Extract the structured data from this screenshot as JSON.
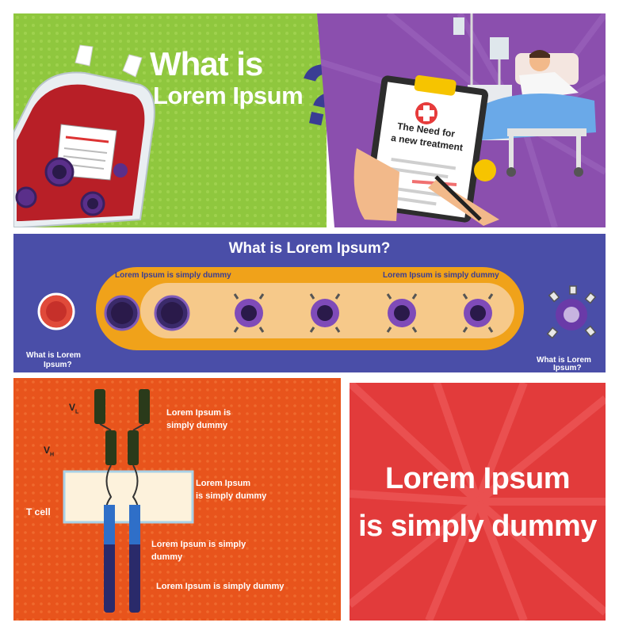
{
  "panel1": {
    "title_line1": "What is",
    "title_line2": "Lorem Ipsum",
    "question_mark": "?",
    "bg_color": "#8fc73e",
    "accent_color": "#3a3d94"
  },
  "panel2": {
    "clipboard_line1": "The Need for",
    "clipboard_line2": "a new treatment",
    "bg_color": "#8b4fae",
    "accent_color": "#e63b3b"
  },
  "panel3": {
    "title": "What is Lorem Ipsum?",
    "label_left": "Lorem Ipsum is simply dummy",
    "label_right": "Lorem Ipsum is simply dummy",
    "caption_left_line1": "What is Lorem",
    "caption_left_line2": "Ipsum?",
    "caption_right_line1": "What is Lorem",
    "caption_right_line2": "Ipsum?",
    "bg_color": "#4a4ea8",
    "band_color": "#f0a21a"
  },
  "panel4": {
    "vl_label": "V",
    "vl_sub": "L",
    "vh_label": "V",
    "vh_sub": "H",
    "tcell_label": "T cell",
    "note1_line1": "Lorem Ipsum is",
    "note1_line2": "simply dummy",
    "note2_line1": "Lorem Ipsum",
    "note2_line2": "is simply dummy",
    "note3_line1": "Lorem Ipsum is simply",
    "note3_line2": "dummy",
    "note4": "Lorem Ipsum is simply dummy",
    "bg_color": "#e8541c"
  },
  "panel5": {
    "line1": "Lorem Ipsum",
    "line2": "is simply dummy",
    "bg_color": "#e23b3b"
  }
}
